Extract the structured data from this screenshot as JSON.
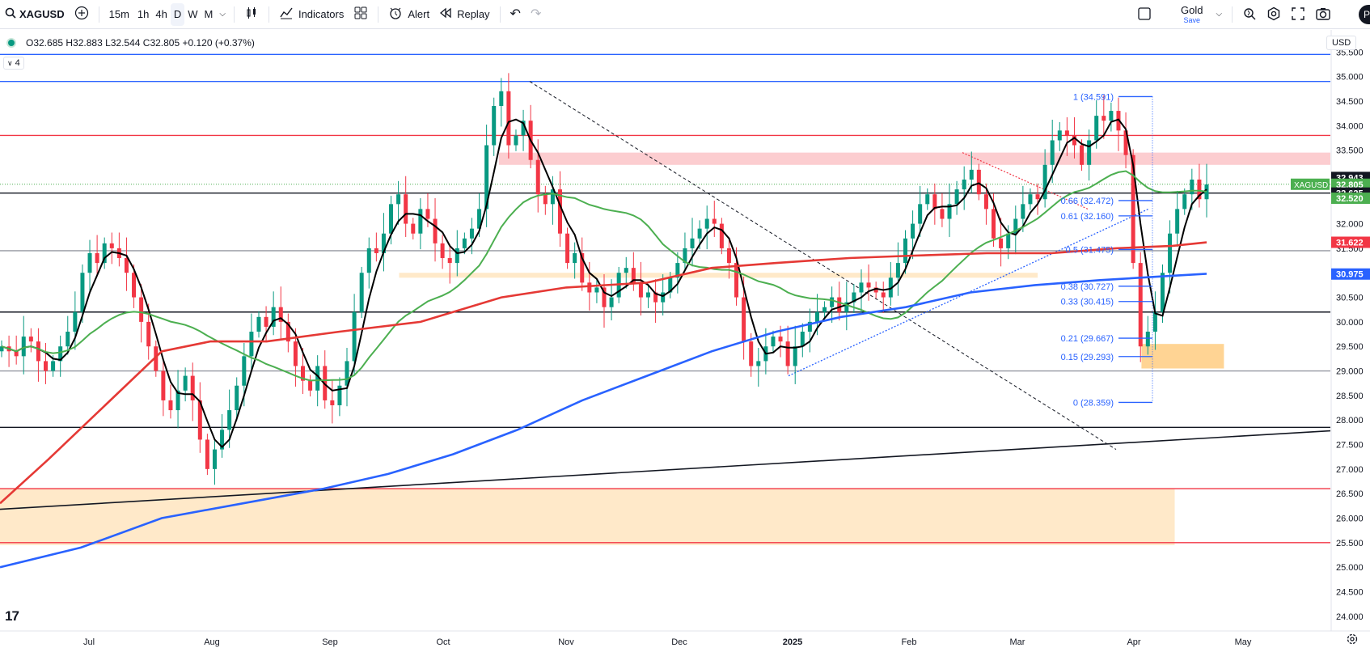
{
  "toolbar": {
    "symbol": "XAGUSD",
    "intervals": [
      "15m",
      "1h",
      "4h",
      "D",
      "W",
      "M"
    ],
    "active_interval": "D",
    "indicators_label": "Indicators",
    "alert_label": "Alert",
    "replay_label": "Replay",
    "layout_name": "Gold",
    "layout_sub": "Save",
    "publish_label": "Pu"
  },
  "legend": {
    "ohlc": "O32.685 H32.883 L32.544 C32.805 +0.120 (+0.37%)",
    "collapse": "4"
  },
  "currency": "USD",
  "colors": {
    "up": "#089981",
    "down": "#f23645",
    "ma_fast": "#000000",
    "ma_mid": "#4caf50",
    "ma_slow_red": "#e53935",
    "ma_slow_blue": "#2962ff",
    "fib": "#2962ff"
  },
  "chart_data": {
    "type": "candlestick",
    "symbol": "XAGUSD",
    "x_labels": [
      "Jul",
      "Aug",
      "Sep",
      "Oct",
      "Nov",
      "Dec",
      "2025",
      "Feb",
      "Mar",
      "Apr",
      "May"
    ],
    "y_ticks": [
      35.5,
      35.0,
      34.5,
      34.0,
      33.5,
      33.0,
      32.5,
      32.0,
      31.5,
      31.0,
      30.5,
      30.0,
      29.5,
      29.0,
      28.5,
      28.0,
      27.5,
      27.0,
      26.5,
      26.0,
      25.5,
      25.0,
      24.5,
      24.0
    ],
    "ylim": [
      23.7,
      35.95
    ],
    "price_labels": [
      {
        "text": "32.943",
        "value": 32.943,
        "bg": "#131722",
        "fg": "#ffffff"
      },
      {
        "text": "32.805",
        "value": 32.805,
        "bg": "#4caf50",
        "fg": "#ffffff",
        "tag": "XAGUSD"
      },
      {
        "text": "32.625",
        "value": 32.625,
        "bg": "#131722",
        "fg": "#ffffff"
      },
      {
        "text": "32.520",
        "value": 32.52,
        "bg": "#4caf50",
        "fg": "#ffffff"
      },
      {
        "text": "31.622",
        "value": 31.622,
        "bg": "#f23645",
        "fg": "#ffffff"
      },
      {
        "text": "30.975",
        "value": 30.975,
        "bg": "#2962ff",
        "fg": "#ffffff"
      }
    ],
    "horizontal_lines": [
      {
        "value": 35.45,
        "color": "#2962ff"
      },
      {
        "value": 34.9,
        "color": "#2962ff"
      },
      {
        "value": 33.8,
        "color": "#f23645"
      },
      {
        "value": 32.625,
        "color": "#131722"
      },
      {
        "value": 31.45,
        "color": "#9598a1"
      },
      {
        "value": 30.2,
        "color": "#131722"
      },
      {
        "value": 29.0,
        "color": "#9598a1"
      },
      {
        "value": 27.85,
        "color": "#131722"
      },
      {
        "value": 26.6,
        "color": "#f23645"
      },
      {
        "value": 25.5,
        "color": "#f23645"
      }
    ],
    "zones": [
      {
        "y1": 33.45,
        "y2": 33.2,
        "x1": 0.375,
        "x2": 1.0,
        "color": "rgba(242,54,69,0.25)"
      },
      {
        "y1": 31.0,
        "y2": 30.9,
        "x1": 0.3,
        "x2": 0.78,
        "color": "rgba(255,183,77,0.3)"
      },
      {
        "y1": 29.55,
        "y2": 29.05,
        "x1": 0.858,
        "x2": 0.92,
        "color": "rgba(255,183,77,0.6)"
      },
      {
        "y1": 26.6,
        "y2": 25.45,
        "x1": 0.0,
        "x2": 0.883,
        "color": "rgba(255,183,77,0.3)"
      }
    ],
    "fib_levels": [
      {
        "label": "1 (34.591)",
        "value": 34.591
      },
      {
        "label": "0.66 (32.472)",
        "value": 32.472
      },
      {
        "label": "0.61 (32.160)",
        "value": 32.16
      },
      {
        "label": "0.5 (31.475)",
        "value": 31.475
      },
      {
        "label": "0.38 (30.727)",
        "value": 30.727
      },
      {
        "label": "0.33 (30.415)",
        "value": 30.415
      },
      {
        "label": "0.21 (29.667)",
        "value": 29.667
      },
      {
        "label": "0.15 (29.293)",
        "value": 29.293
      },
      {
        "label": "0 (28.359)",
        "value": 28.359
      }
    ],
    "close_series": [
      29.5,
      29.4,
      29.3,
      29.7,
      29.6,
      29.2,
      29.0,
      29.2,
      29.5,
      29.8,
      30.2,
      31.0,
      31.4,
      31.2,
      31.6,
      31.5,
      31.3,
      31.0,
      30.5,
      30.0,
      29.5,
      29.0,
      28.4,
      28.2,
      28.6,
      28.9,
      28.4,
      27.6,
      27.0,
      27.4,
      27.8,
      28.2,
      28.7,
      29.3,
      29.8,
      30.1,
      29.9,
      30.3,
      30.0,
      29.6,
      29.1,
      28.8,
      28.6,
      29.1,
      28.4,
      28.3,
      28.7,
      29.2,
      30.2,
      31.0,
      31.5,
      31.4,
      31.8,
      32.4,
      32.6,
      32.0,
      31.8,
      32.3,
      32.1,
      31.6,
      31.3,
      31.2,
      31.5,
      31.7,
      31.9,
      32.3,
      33.6,
      34.4,
      34.7,
      33.6,
      33.8,
      34.1,
      33.3,
      32.6,
      32.4,
      32.7,
      31.8,
      31.2,
      31.4,
      30.8,
      30.6,
      30.7,
      30.3,
      30.5,
      31.0,
      31.1,
      30.8,
      30.5,
      30.6,
      30.4,
      30.6,
      30.9,
      31.2,
      31.5,
      31.7,
      31.9,
      32.1,
      32.0,
      31.5,
      31.2,
      30.5,
      29.6,
      29.1,
      29.2,
      29.5,
      29.7,
      29.6,
      29.1,
      29.5,
      29.8,
      30.0,
      30.2,
      30.3,
      30.5,
      30.2,
      30.4,
      30.6,
      30.8,
      30.7,
      30.6,
      30.5,
      30.9,
      31.2,
      31.7,
      32.0,
      32.4,
      32.6,
      32.3,
      32.1,
      32.4,
      32.7,
      32.9,
      33.1,
      32.6,
      32.3,
      31.7,
      31.5,
      31.8,
      32.1,
      32.4,
      32.6,
      32.5,
      33.2,
      33.7,
      33.9,
      33.8,
      33.6,
      33.2,
      33.7,
      34.2,
      34.1,
      34.3,
      33.9,
      33.4,
      31.2,
      29.5,
      29.8,
      30.2,
      31.0,
      31.8,
      32.3,
      32.6,
      32.9,
      32.5,
      32.8
    ]
  }
}
